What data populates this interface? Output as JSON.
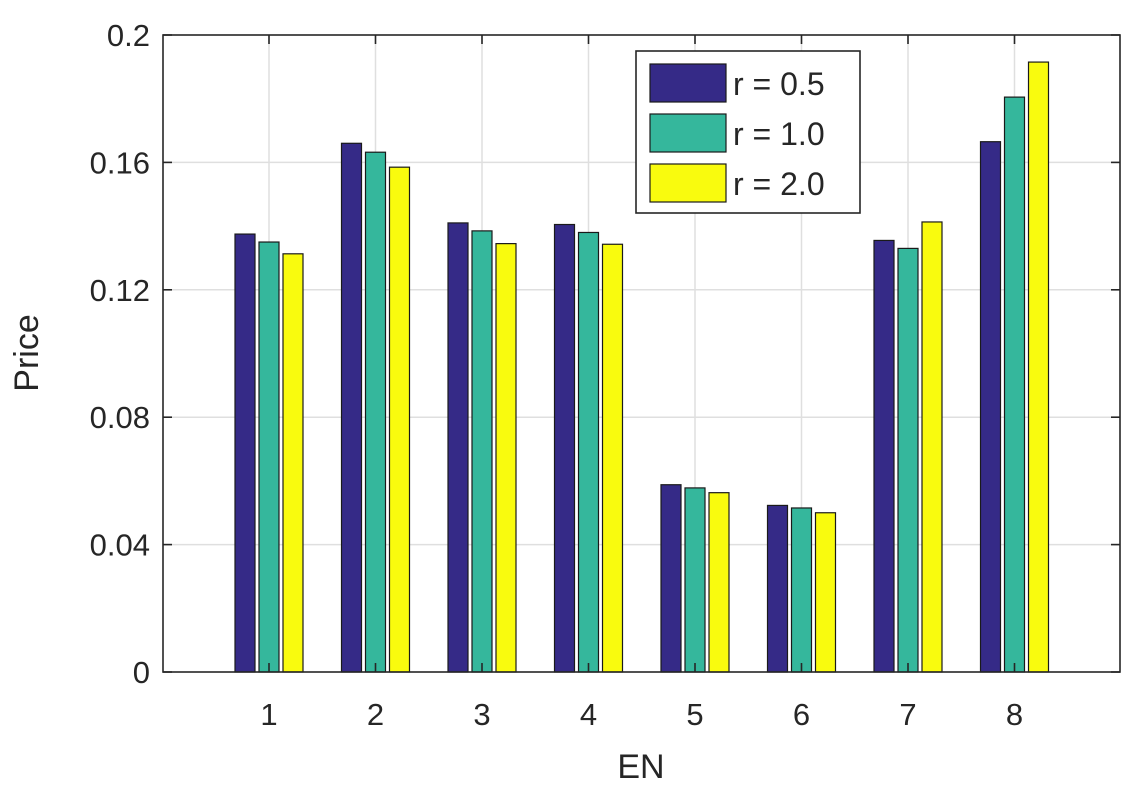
{
  "chart_data": {
    "type": "bar",
    "title": "",
    "xlabel": "EN",
    "ylabel": "Price",
    "categories": [
      "1",
      "2",
      "3",
      "4",
      "5",
      "6",
      "7",
      "8"
    ],
    "ylim": [
      0,
      0.2
    ],
    "yticks": [
      "0",
      "0.04",
      "0.08",
      "0.12",
      "0.16",
      "0.2"
    ],
    "ytick_values": [
      0,
      0.04,
      0.08,
      0.12,
      0.16,
      0.2
    ],
    "grid": true,
    "legend_position": "top-right",
    "series": [
      {
        "name": "r = 0.5",
        "color": "#352a87",
        "values": [
          0.1375,
          0.166,
          0.141,
          0.1405,
          0.0588,
          0.0523,
          0.1355,
          0.1665
        ]
      },
      {
        "name": "r = 1.0",
        "color": "#35b79c",
        "values": [
          0.135,
          0.1632,
          0.1385,
          0.138,
          0.0578,
          0.0515,
          0.133,
          0.1805
        ]
      },
      {
        "name": "r = 2.0",
        "color": "#f9fb0e",
        "values": [
          0.1313,
          0.1585,
          0.1345,
          0.1343,
          0.0563,
          0.05,
          0.1413,
          0.1915
        ]
      }
    ]
  }
}
